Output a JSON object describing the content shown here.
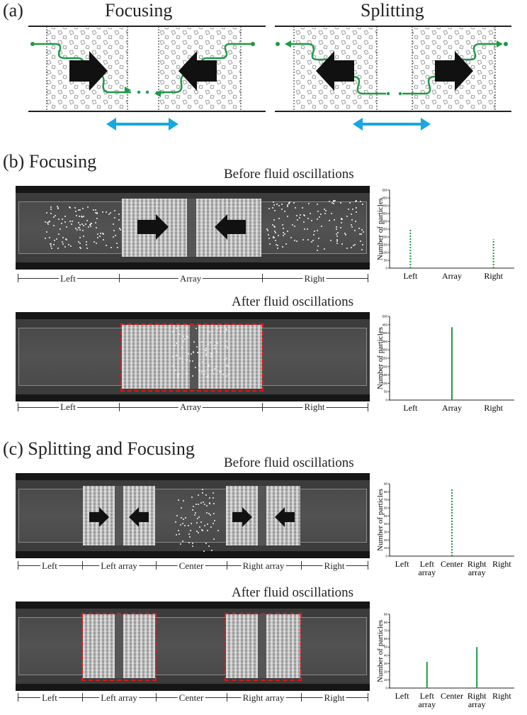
{
  "panel_a": {
    "label": "(a)",
    "focusing_title": "Focusing",
    "splitting_title": "Splitting"
  },
  "panel_b": {
    "label": "(b) Focusing",
    "before_title": "Before fluid oscillations",
    "after_title": "After fluid oscillations",
    "regions": [
      "Left",
      "Array",
      "Right"
    ]
  },
  "panel_c": {
    "label": "(c) Splitting and Focusing",
    "before_title": "Before fluid oscillations",
    "after_title": "After fluid oscillations",
    "regions": [
      "Left",
      "Left array",
      "Center",
      "Right array",
      "Right"
    ]
  },
  "colors": {
    "green": "#1e9a46",
    "blue": "#18a8e0",
    "red": "#e01818"
  },
  "chart_data": [
    {
      "type": "bar",
      "ylabel": "Number of particles",
      "ylim": [
        0,
        500
      ],
      "yticks": [
        "0",
        "50",
        "100",
        "150",
        "200",
        "250",
        "300",
        "350",
        "400",
        "450",
        "500"
      ],
      "categories": [
        "Left",
        "Array",
        "Right"
      ],
      "values": [
        250,
        0,
        185
      ],
      "style": "dotted"
    },
    {
      "type": "bar",
      "ylabel": "Number of particles",
      "ylim": [
        0,
        500
      ],
      "yticks": [
        "0",
        "50",
        "100",
        "150",
        "200",
        "250",
        "300",
        "350",
        "400",
        "450",
        "500"
      ],
      "categories": [
        "Left",
        "Array",
        "Right"
      ],
      "values": [
        0,
        435,
        0
      ],
      "style": "solid"
    },
    {
      "type": "bar",
      "ylabel": "Number of particles",
      "ylim": [
        0,
        90
      ],
      "yticks": [
        "0",
        "10",
        "20",
        "30",
        "40",
        "50",
        "60",
        "70",
        "80",
        "90"
      ],
      "categories": [
        "Left",
        "Left\narray",
        "Center",
        "Right\narray",
        "Right"
      ],
      "values": [
        0,
        0,
        83,
        0,
        0
      ],
      "style": "dotted"
    },
    {
      "type": "bar",
      "ylabel": "Number of particles",
      "ylim": [
        0,
        90
      ],
      "yticks": [
        "0",
        "10",
        "20",
        "30",
        "40",
        "50",
        "60",
        "70",
        "80",
        "90"
      ],
      "categories": [
        "Left",
        "Left\narray",
        "Center",
        "Right\narray",
        "Right"
      ],
      "values": [
        0,
        32,
        0,
        50,
        0
      ],
      "style": "solid"
    }
  ]
}
